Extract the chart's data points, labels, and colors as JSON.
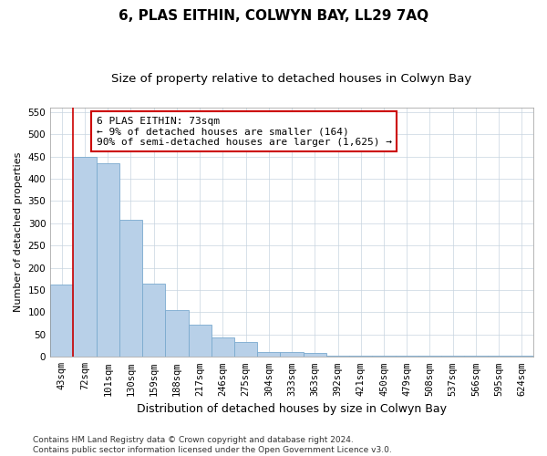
{
  "title": "6, PLAS EITHIN, COLWYN BAY, LL29 7AQ",
  "subtitle": "Size of property relative to detached houses in Colwyn Bay",
  "xlabel": "Distribution of detached houses by size in Colwyn Bay",
  "ylabel": "Number of detached properties",
  "categories": [
    "43sqm",
    "72sqm",
    "101sqm",
    "130sqm",
    "159sqm",
    "188sqm",
    "217sqm",
    "246sqm",
    "275sqm",
    "304sqm",
    "333sqm",
    "363sqm",
    "392sqm",
    "421sqm",
    "450sqm",
    "479sqm",
    "508sqm",
    "537sqm",
    "566sqm",
    "595sqm",
    "624sqm"
  ],
  "values": [
    162,
    450,
    435,
    307,
    165,
    105,
    73,
    44,
    33,
    10,
    10,
    8,
    3,
    3,
    3,
    3,
    3,
    3,
    3,
    3,
    3
  ],
  "bar_color": "#b8d0e8",
  "bar_edge_color": "#7aaace",
  "vline_color": "#cc0000",
  "vline_x": 0.5,
  "annotation_text": "6 PLAS EITHIN: 73sqm\n← 9% of detached houses are smaller (164)\n90% of semi-detached houses are larger (1,625) →",
  "annotation_box_color": "#ffffff",
  "annotation_box_edge": "#cc0000",
  "ylim": [
    0,
    560
  ],
  "yticks": [
    0,
    50,
    100,
    150,
    200,
    250,
    300,
    350,
    400,
    450,
    500,
    550
  ],
  "footer": "Contains HM Land Registry data © Crown copyright and database right 2024.\nContains public sector information licensed under the Open Government Licence v3.0.",
  "title_fontsize": 11,
  "subtitle_fontsize": 9.5,
  "xlabel_fontsize": 9,
  "ylabel_fontsize": 8,
  "tick_fontsize": 7.5,
  "annotation_fontsize": 8,
  "footer_fontsize": 6.5
}
